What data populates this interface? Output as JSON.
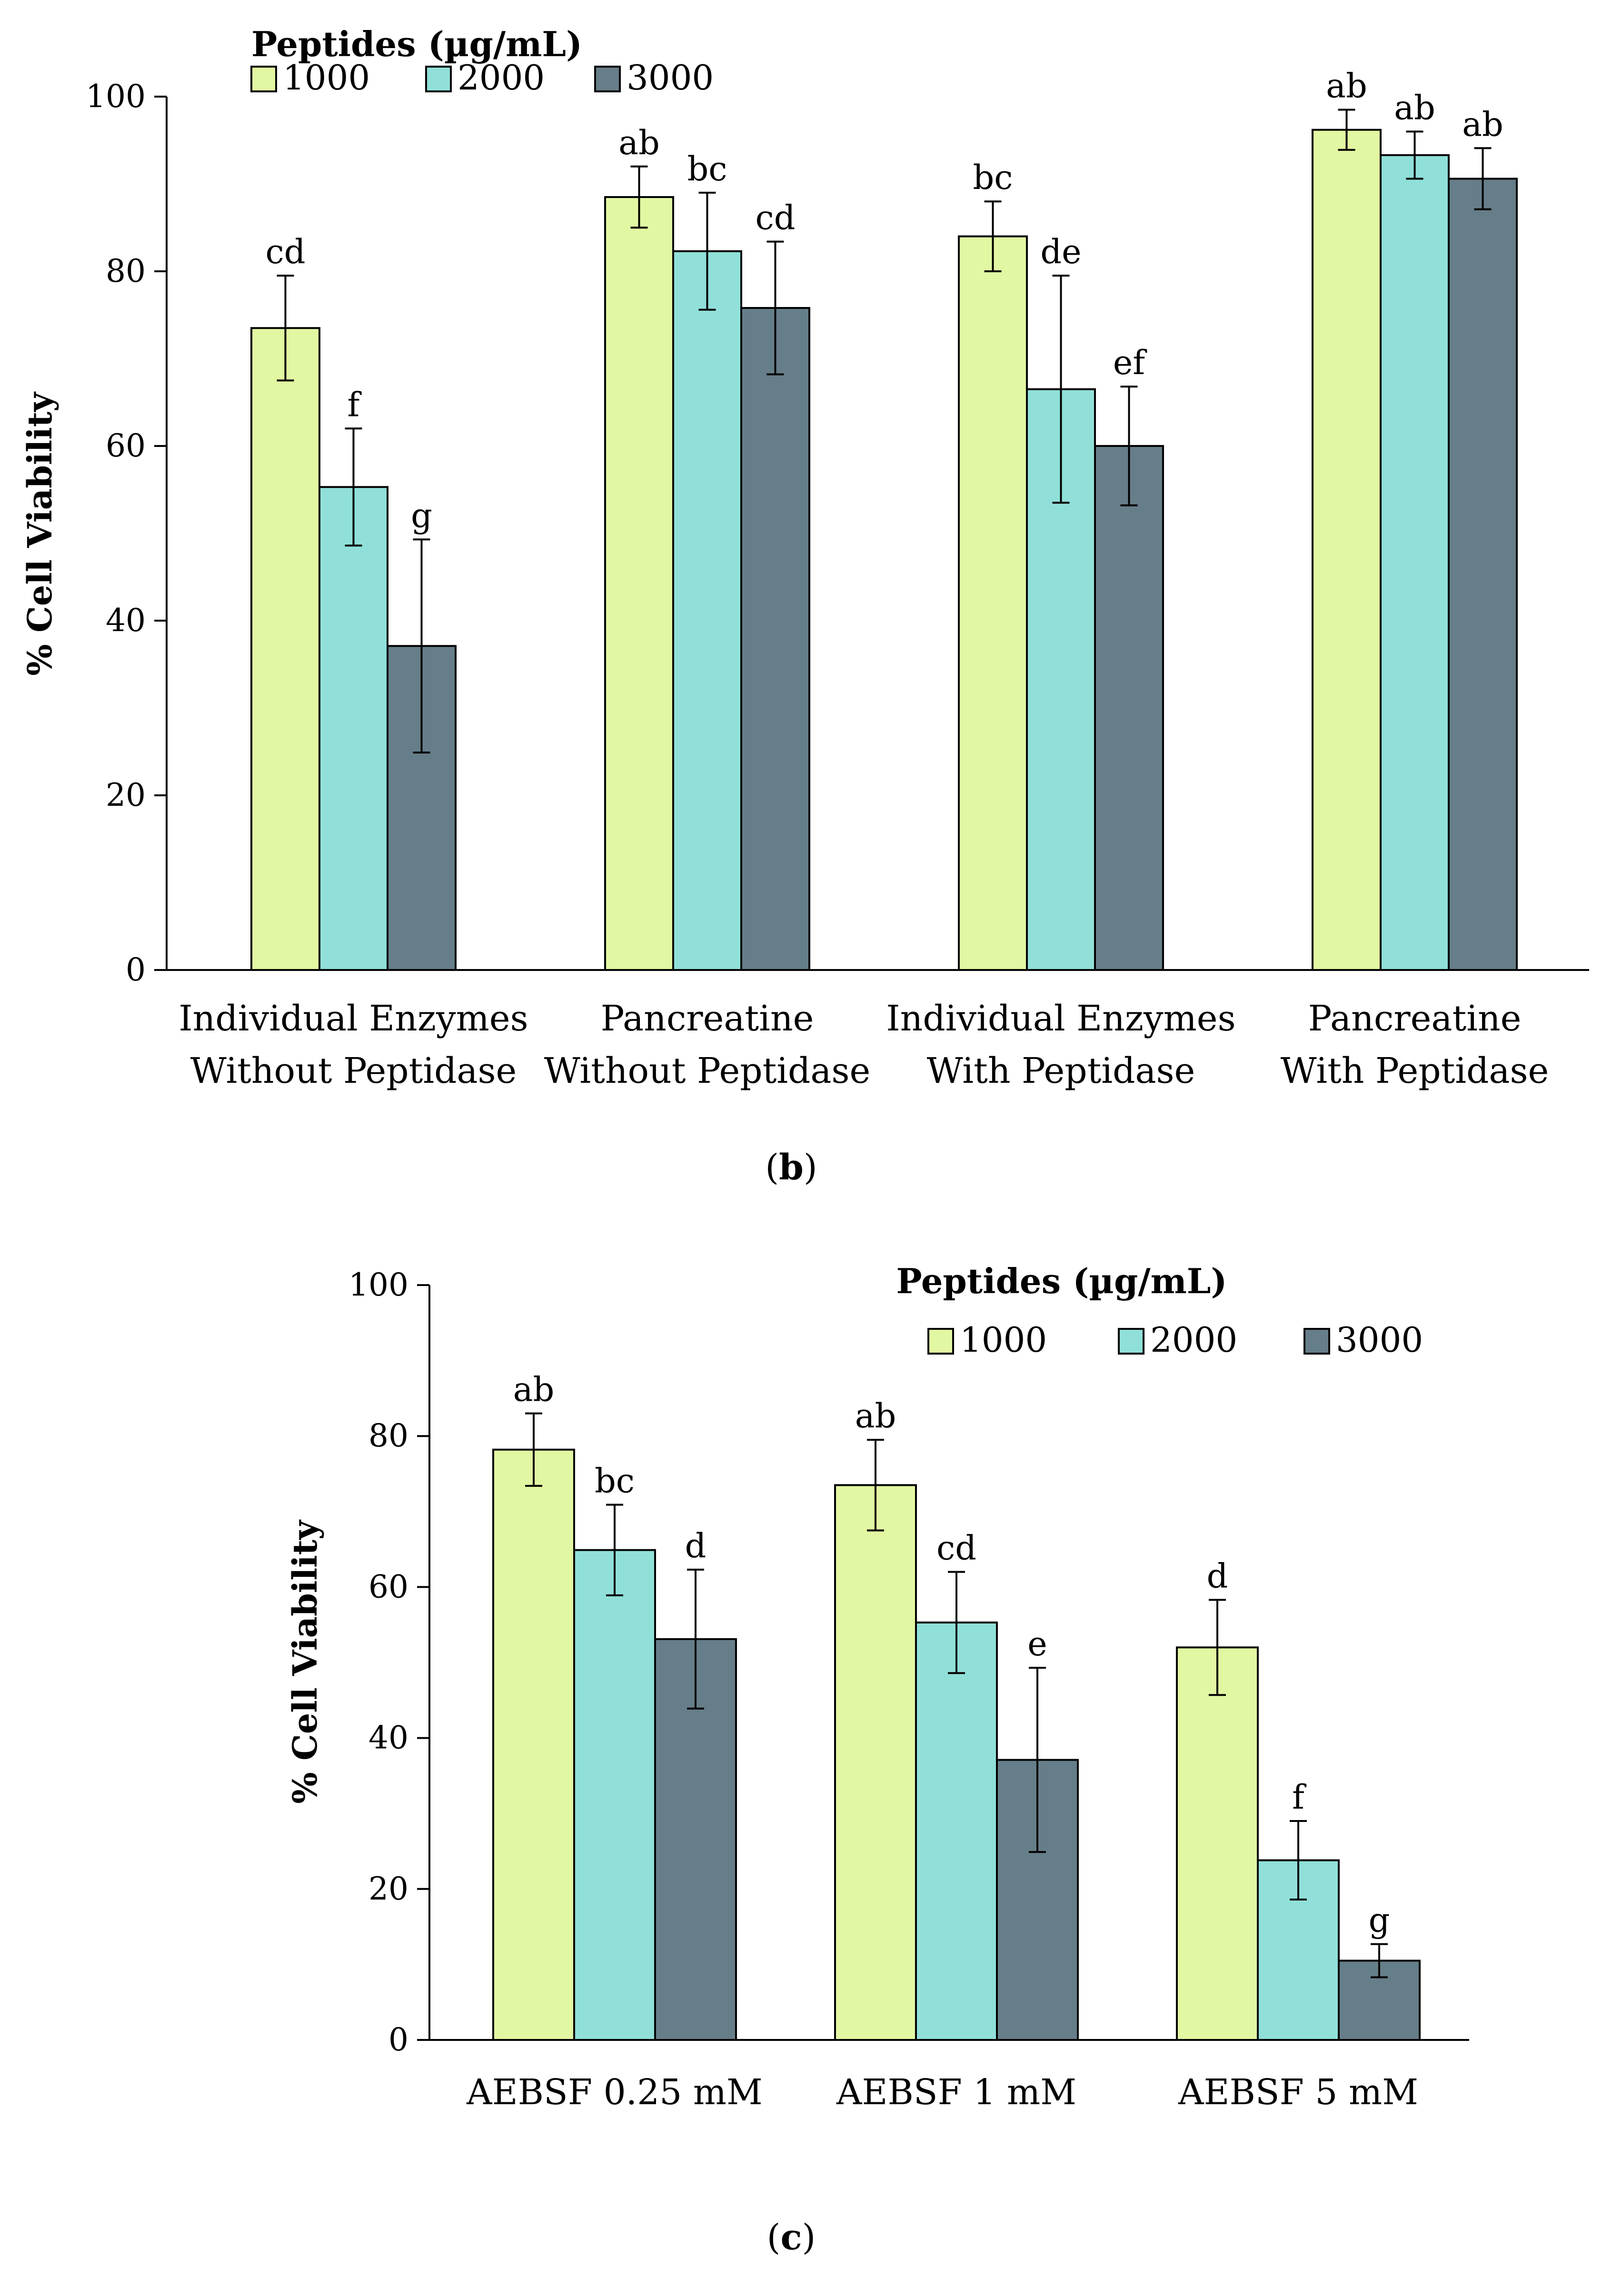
{
  "chart_data": [
    {
      "type": "bar",
      "id": "b",
      "panel_label": "b",
      "ylabel": "% Cell Viability",
      "ylim": [
        0,
        100
      ],
      "yticks": [
        0,
        20,
        40,
        60,
        80,
        100
      ],
      "grid": false,
      "legend_title": "Peptides (µg/mL)",
      "legend_placement": "top-left",
      "categories": [
        [
          "Individual Enzymes",
          "Without Peptidase"
        ],
        [
          "Pancreatine",
          "Without Peptidase"
        ],
        [
          "Individual Enzymes",
          "With Peptidase"
        ],
        [
          "Pancreatine",
          "With Peptidase"
        ]
      ],
      "series": [
        {
          "name": "1000",
          "color": "#e2f7a2",
          "values": [
            73.5,
            88.5,
            84,
            96.2
          ],
          "errors": [
            6,
            3.5,
            4,
            2.3
          ],
          "labels": [
            "cd",
            "ab",
            "bc",
            "ab"
          ]
        },
        {
          "name": "2000",
          "color": "#90e0d9",
          "values": [
            55.3,
            82.3,
            66.5,
            93.3
          ],
          "errors": [
            6.7,
            6.7,
            13,
            2.7
          ],
          "labels": [
            "f",
            "bc",
            "de",
            "ab"
          ]
        },
        {
          "name": "3000",
          "color": "#667e89",
          "values": [
            37.1,
            75.8,
            60,
            90.6
          ],
          "errors": [
            12.2,
            7.6,
            6.8,
            3.5
          ],
          "labels": [
            "g",
            "cd",
            "ef",
            "ab"
          ]
        }
      ]
    },
    {
      "type": "bar",
      "id": "c",
      "panel_label": "c",
      "ylabel": "% Cell Viability",
      "ylim": [
        0,
        100
      ],
      "yticks": [
        0,
        20,
        40,
        60,
        80,
        100
      ],
      "grid": false,
      "legend_title": "Peptides (µg/mL)",
      "legend_placement": "top-right",
      "categories": [
        [
          "AEBSF 0.25 mM"
        ],
        [
          "AEBSF 1 mM"
        ],
        [
          "AEBSF 5 mM"
        ]
      ],
      "series": [
        {
          "name": "1000",
          "color": "#e2f7a2",
          "values": [
            78.2,
            73.5,
            52
          ],
          "errors": [
            4.8,
            6,
            6.3
          ],
          "labels": [
            "ab",
            "ab",
            "d"
          ]
        },
        {
          "name": "2000",
          "color": "#90e0d9",
          "values": [
            64.9,
            55.3,
            23.8
          ],
          "errors": [
            6,
            6.7,
            5.2
          ],
          "labels": [
            "bc",
            "cd",
            "f"
          ]
        },
        {
          "name": "3000",
          "color": "#667e89",
          "values": [
            53.1,
            37.1,
            10.5
          ],
          "errors": [
            9.2,
            12.2,
            2.2
          ],
          "labels": [
            "d",
            "e",
            "g"
          ]
        }
      ]
    }
  ]
}
